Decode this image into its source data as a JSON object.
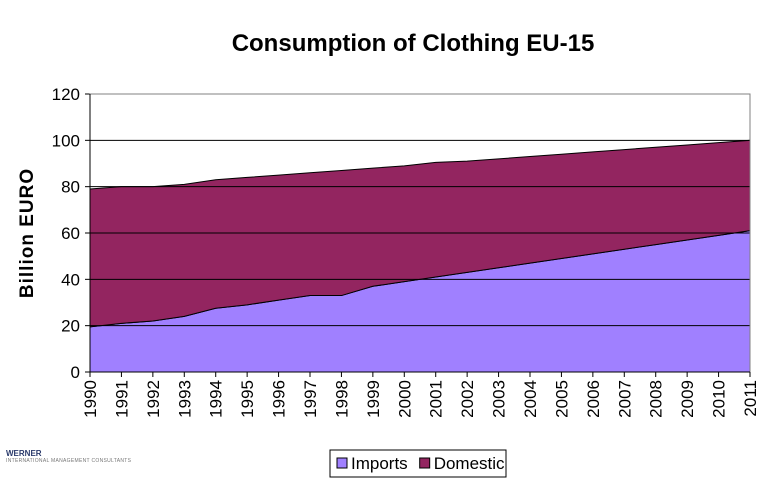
{
  "chart_data": {
    "type": "area",
    "stacked": true,
    "title": "Consumption of Clothing EU-15",
    "ylabel": "Billion EURO",
    "xlabel": "",
    "ylim": [
      0,
      120
    ],
    "yticks": [
      0,
      20,
      40,
      60,
      80,
      100,
      120
    ],
    "grid": "horizontal",
    "legend": "bottom",
    "categories": [
      "1990",
      "1991",
      "1992",
      "1993",
      "1994",
      "1995",
      "1996",
      "1997",
      "1998",
      "1999",
      "2000",
      "2001",
      "2002",
      "2003",
      "2004",
      "2005",
      "2006",
      "2007",
      "2008",
      "2009",
      "2010",
      "2011"
    ],
    "series": [
      {
        "name": "Imports",
        "color": "#a080ff",
        "values": [
          19.5,
          21,
          22,
          24,
          27.5,
          29,
          31,
          33,
          33,
          37,
          39,
          41,
          43,
          45,
          47,
          49,
          51,
          53,
          55,
          57,
          59,
          61
        ]
      },
      {
        "name": "Domestic",
        "color": "#932560",
        "values": [
          59.5,
          59,
          58,
          57,
          55.5,
          55,
          54,
          53,
          54,
          51,
          50,
          49.5,
          48,
          47,
          46,
          45,
          44,
          43,
          42,
          41,
          40,
          39
        ]
      }
    ]
  },
  "logo": {
    "name": "WERNER",
    "tagline": "INTERNATIONAL MANAGEMENT CONSULTANTS"
  }
}
